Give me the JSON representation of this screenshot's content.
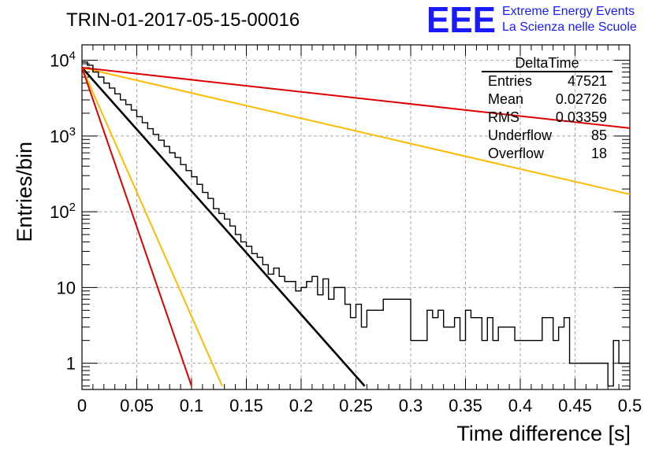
{
  "header": {
    "run_title": "TRIN-01-2017-05-15-00016",
    "logo_text": "EEE",
    "logo_line1": "Extreme Energy Events",
    "logo_line2": "La Scienza nelle Scuole",
    "logo_color": "#1a1aff"
  },
  "stats_box": {
    "title": "DeltaTime",
    "rows": [
      {
        "label": "Entries",
        "value": "47521"
      },
      {
        "label": "Mean",
        "value": "0.02726"
      },
      {
        "label": "RMS",
        "value": "0.03359"
      },
      {
        "label": "Underflow",
        "value": "85"
      },
      {
        "label": "Overflow",
        "value": "18"
      }
    ]
  },
  "chart_data": {
    "type": "line",
    "title": "TRIN-01-2017-05-15-00016",
    "xlabel": "Time difference [s]",
    "ylabel": "Entries/bin",
    "xlim": [
      0,
      0.5
    ],
    "ylim": [
      0.45,
      16000
    ],
    "y_scale": "log",
    "grid": true,
    "x_ticks": [
      "0",
      "0.05",
      "0.1",
      "0.15",
      "0.2",
      "0.25",
      "0.3",
      "0.35",
      "0.4",
      "0.45",
      "0.5"
    ],
    "x_tick_values": [
      0,
      0.05,
      0.1,
      0.15,
      0.2,
      0.25,
      0.3,
      0.35,
      0.4,
      0.45,
      0.5
    ],
    "y_tick_values": [
      1,
      10,
      100,
      1000,
      10000
    ],
    "histogram": {
      "name": "DeltaTime",
      "color": "#000000",
      "bin_edges_start": 0,
      "bin_width": 0.005,
      "values": [
        9500,
        8600,
        7000,
        6000,
        5000,
        4300,
        3600,
        3000,
        2600,
        2200,
        1800,
        1500,
        1250,
        1050,
        880,
        730,
        600,
        520,
        420,
        350,
        290,
        230,
        180,
        150,
        110,
        95,
        80,
        65,
        50,
        40,
        35,
        28,
        25,
        20,
        15,
        18,
        14,
        12,
        12,
        9,
        10,
        12,
        14,
        8,
        13,
        7,
        10,
        10,
        6,
        4,
        6,
        3,
        5,
        5,
        5,
        7,
        7,
        7,
        7,
        7,
        2,
        2,
        2,
        5,
        4,
        5,
        3,
        3,
        4,
        2,
        5,
        4,
        4,
        2,
        4,
        2,
        3,
        3,
        3,
        2,
        2,
        2,
        2,
        2,
        4,
        4,
        2,
        3,
        4,
        1,
        1,
        1,
        1,
        1,
        1,
        1,
        0.5,
        2,
        1,
        1
      ]
    },
    "series": [
      {
        "color": "#000000",
        "y_at_0": 8000,
        "y_at_end": 0.5,
        "x_end": 0.258
      },
      {
        "color": "#ffbb00",
        "y_at_0": 8000,
        "y_at_end": 0.5,
        "x_end": 0.128
      },
      {
        "color": "#dd0000",
        "y_at_0": 8000,
        "y_at_end": 0.5,
        "x_end": 0.1
      },
      {
        "color": "#ffbb00",
        "y_at_0": 8000,
        "y_at_end": 170,
        "x_end": 0.5
      },
      {
        "color": "#dd0000",
        "y_at_0": 8000,
        "y_at_end": 1270,
        "x_end": 0.5
      }
    ]
  }
}
